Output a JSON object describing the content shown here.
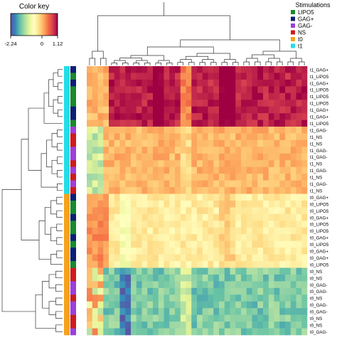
{
  "color_key": {
    "title": "Color key",
    "min": -2.24,
    "max": 1.12,
    "ticks": [
      {
        "value": -2.24,
        "label": "-2.24"
      },
      {
        "value": 0,
        "label": "0"
      },
      {
        "value": 1.12,
        "label": "1.12"
      }
    ],
    "colors": [
      "#5e4fa2",
      "#3288bd",
      "#66c2a5",
      "#abdda4",
      "#e6f598",
      "#ffffbf",
      "#fee08b",
      "#fdae61",
      "#f46d43",
      "#d53e4f",
      "#9e0142"
    ]
  },
  "legend": {
    "title": "Stimulations",
    "items": [
      {
        "label": "LIPO5",
        "color": "#1a8a2e"
      },
      {
        "label": "GAG+",
        "color": "#0b1f75"
      },
      {
        "label": "GAG-",
        "color": "#9b3fdb"
      },
      {
        "label": "NS",
        "color": "#d11a1a"
      },
      {
        "label": "t0",
        "color": "#f5a21c"
      },
      {
        "label": "t1",
        "color": "#22dde8"
      }
    ]
  },
  "chart_data": {
    "type": "heatmap",
    "title": "",
    "n_columns": 40,
    "value_range": [
      -2.24,
      1.12
    ],
    "rows": [
      {
        "label": "t1_GAG+",
        "stimulation": "GAG+",
        "time": "t1",
        "cluster": 1
      },
      {
        "label": "t1_LIPO5",
        "stimulation": "LIPO5",
        "time": "t1",
        "cluster": 1
      },
      {
        "label": "t1_GAG+",
        "stimulation": "GAG+",
        "time": "t1",
        "cluster": 1
      },
      {
        "label": "t1_LIPO5",
        "stimulation": "LIPO5",
        "time": "t1",
        "cluster": 1
      },
      {
        "label": "t1_LIPO5",
        "stimulation": "LIPO5",
        "time": "t1",
        "cluster": 1
      },
      {
        "label": "t1_LIPO5",
        "stimulation": "LIPO5",
        "time": "t1",
        "cluster": 1
      },
      {
        "label": "t1_GAG+",
        "stimulation": "GAG+",
        "time": "t1",
        "cluster": 1
      },
      {
        "label": "t1_GAG+",
        "stimulation": "GAG+",
        "time": "t1",
        "cluster": 1
      },
      {
        "label": "t1_LIPO5",
        "stimulation": "LIPO5",
        "time": "t1",
        "cluster": 1
      },
      {
        "label": "t1_GAG-",
        "stimulation": "GAG-",
        "time": "t1",
        "cluster": 2
      },
      {
        "label": "t1_NS",
        "stimulation": "NS",
        "time": "t1",
        "cluster": 2
      },
      {
        "label": "t1_NS",
        "stimulation": "NS",
        "time": "t1",
        "cluster": 2
      },
      {
        "label": "t1_GAG-",
        "stimulation": "GAG-",
        "time": "t1",
        "cluster": 2
      },
      {
        "label": "t1_GAG-",
        "stimulation": "GAG-",
        "time": "t1",
        "cluster": 2
      },
      {
        "label": "t1_NS",
        "stimulation": "NS",
        "time": "t1",
        "cluster": 2
      },
      {
        "label": "t1_GAG-",
        "stimulation": "GAG-",
        "time": "t1",
        "cluster": 2
      },
      {
        "label": "t1_NS",
        "stimulation": "NS",
        "time": "t1",
        "cluster": 2
      },
      {
        "label": "t1_GAG-",
        "stimulation": "GAG-",
        "time": "t1",
        "cluster": 2
      },
      {
        "label": "t1_NS",
        "stimulation": "NS",
        "time": "t1",
        "cluster": 2
      },
      {
        "label": "t0_GAG+",
        "stimulation": "GAG+",
        "time": "t0",
        "cluster": 3
      },
      {
        "label": "t0_LIPO5",
        "stimulation": "LIPO5",
        "time": "t0",
        "cluster": 3
      },
      {
        "label": "t0_LIPO5",
        "stimulation": "LIPO5",
        "time": "t0",
        "cluster": 3
      },
      {
        "label": "t0_GAG+",
        "stimulation": "GAG+",
        "time": "t0",
        "cluster": 3
      },
      {
        "label": "t0_LIPO5",
        "stimulation": "LIPO5",
        "time": "t0",
        "cluster": 3
      },
      {
        "label": "t0_LIPO5",
        "stimulation": "LIPO5",
        "time": "t0",
        "cluster": 3
      },
      {
        "label": "t0_GAG+",
        "stimulation": "GAG+",
        "time": "t0",
        "cluster": 3
      },
      {
        "label": "t0_LIPO5",
        "stimulation": "LIPO5",
        "time": "t0",
        "cluster": 3
      },
      {
        "label": "t0_GAG+",
        "stimulation": "GAG+",
        "time": "t0",
        "cluster": 3
      },
      {
        "label": "t0_GAG+",
        "stimulation": "GAG+",
        "time": "t0",
        "cluster": 3
      },
      {
        "label": "t0_LIPO5",
        "stimulation": "LIPO5",
        "time": "t0",
        "cluster": 3
      },
      {
        "label": "t0_NS",
        "stimulation": "NS",
        "time": "t0",
        "cluster": 4
      },
      {
        "label": "t0_NS",
        "stimulation": "NS",
        "time": "t0",
        "cluster": 4
      },
      {
        "label": "t0_GAG-",
        "stimulation": "GAG-",
        "time": "t0",
        "cluster": 4
      },
      {
        "label": "t0_GAG-",
        "stimulation": "GAG-",
        "time": "t0",
        "cluster": 4
      },
      {
        "label": "t0_NS",
        "stimulation": "NS",
        "time": "t0",
        "cluster": 4
      },
      {
        "label": "t0_GAG-",
        "stimulation": "GAG-",
        "time": "t0",
        "cluster": 4
      },
      {
        "label": "t0_GAG-",
        "stimulation": "GAG-",
        "time": "t0",
        "cluster": 4
      },
      {
        "label": "t0_NS",
        "stimulation": "NS",
        "time": "t0",
        "cluster": 4
      },
      {
        "label": "t0_NS",
        "stimulation": "NS",
        "time": "t0",
        "cluster": 4
      },
      {
        "label": "t0_GAG-",
        "stimulation": "GAG-",
        "time": "t0",
        "cluster": 4
      }
    ],
    "cluster_base_values": [
      0.95,
      0.05,
      -0.35,
      -1.45
    ]
  }
}
